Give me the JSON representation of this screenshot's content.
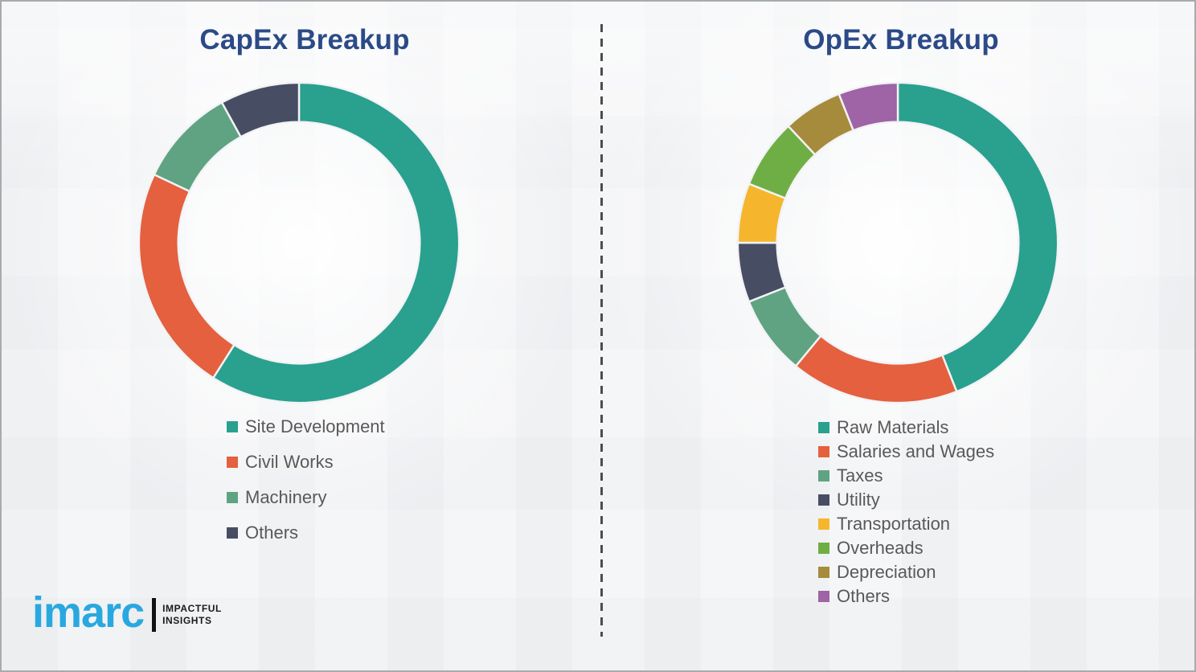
{
  "titles": {
    "capex": "CapEx Breakup",
    "opex": "OpEx Breakup"
  },
  "title_color": "#2B4A87",
  "divider": {
    "style": "dashed-vertical",
    "color": "#4d4d4d"
  },
  "chart_data": [
    {
      "id": "capex",
      "type": "pie",
      "subtype": "donut",
      "title": "CapEx Breakup",
      "labels": [
        "Site Development",
        "Civil Works",
        "Machinery",
        "Others"
      ],
      "values": [
        59,
        23,
        10,
        8
      ],
      "unit": "percent (estimated from arc angles; no numeric labels shown)",
      "colors": [
        "#2AA08F",
        "#E4603E",
        "#5FA383",
        "#474E63"
      ],
      "start_angle_deg": 0,
      "direction": "clockwise",
      "legend_position": "below-left"
    },
    {
      "id": "opex",
      "type": "pie",
      "subtype": "donut",
      "title": "OpEx Breakup",
      "labels": [
        "Raw Materials",
        "Salaries and Wages",
        "Taxes",
        "Utility",
        "Transportation",
        "Overheads",
        "Depreciation",
        "Others"
      ],
      "values": [
        44,
        17,
        8,
        6,
        6,
        7,
        6,
        6
      ],
      "unit": "percent (estimated from arc angles; no numeric labels shown)",
      "colors": [
        "#2AA08F",
        "#E4603E",
        "#5FA383",
        "#474E63",
        "#F5B62E",
        "#6FAE44",
        "#A68B3D",
        "#9E64A5"
      ],
      "start_angle_deg": 0,
      "direction": "clockwise",
      "legend_position": "below-left"
    }
  ],
  "logo": {
    "brand": "imarc",
    "tagline_line1": "IMPACTFUL",
    "tagline_line2": "INSIGHTS",
    "brand_color": "#29A8E0"
  }
}
